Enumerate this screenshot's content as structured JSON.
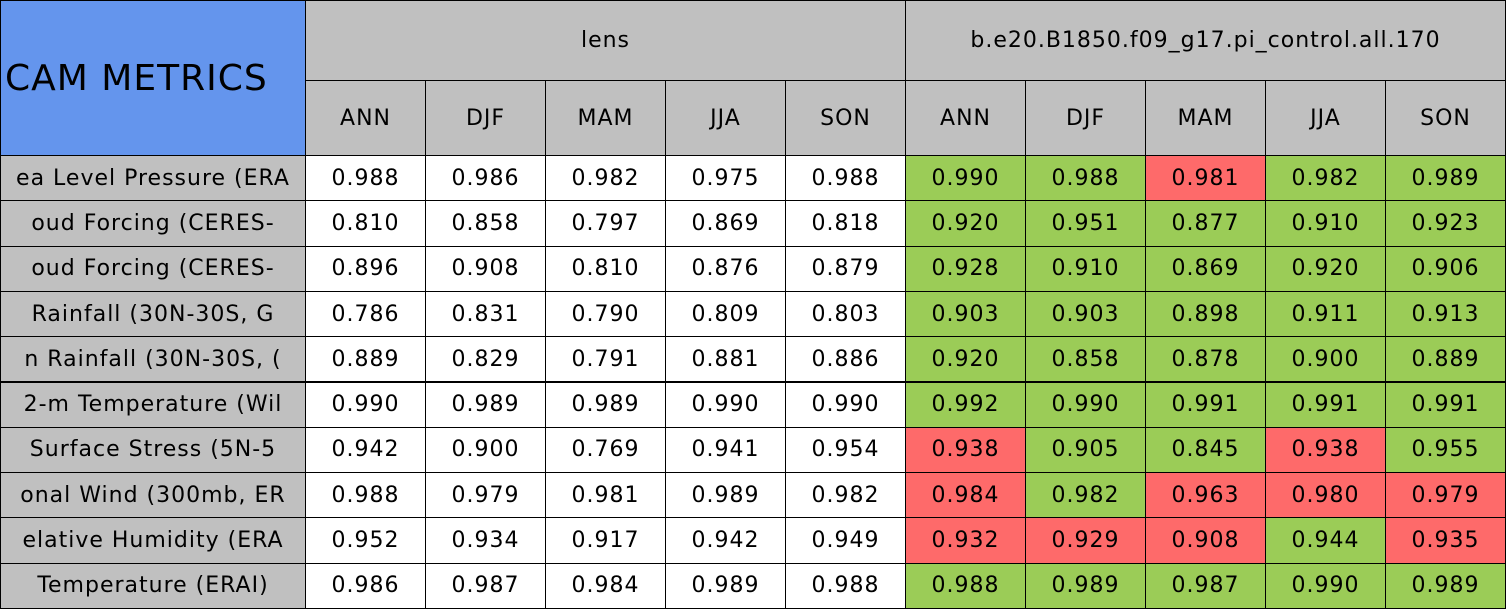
{
  "header": {
    "title": "CAM METRICS",
    "groups": [
      {
        "name": "lens",
        "seasons": [
          "ANN",
          "DJF",
          "MAM",
          "JJA",
          "SON"
        ]
      },
      {
        "name": "b.e20.B1850.f09_g17.pi_control.all.170",
        "seasons": [
          "ANN",
          "DJF",
          "MAM",
          "JJA",
          "SON"
        ]
      }
    ]
  },
  "colors": {
    "title": "#6495ed",
    "header": "#c0c0c0",
    "label": "#c0c0c0"
  },
  "rows": [
    {
      "label": "ea Level Pressure (ERA",
      "values": [
        "0.988",
        "0.986",
        "0.982",
        "0.975",
        "0.988",
        "0.990",
        "0.988",
        "0.981",
        "0.982",
        "0.989"
      ],
      "colors": [
        "#ffffff",
        "#ffffff",
        "#ffffff",
        "#ffffff",
        "#ffffff",
        "#9bcc57",
        "#9bcc57",
        "#fe6a6a",
        "#9bcc57",
        "#9bcc57"
      ]
    },
    {
      "label": "oud Forcing (CERES-",
      "values": [
        "0.810",
        "0.858",
        "0.797",
        "0.869",
        "0.818",
        "0.920",
        "0.951",
        "0.877",
        "0.910",
        "0.923"
      ],
      "colors": [
        "#ffffff",
        "#ffffff",
        "#ffffff",
        "#ffffff",
        "#ffffff",
        "#9bcc57",
        "#9bcc57",
        "#9bcc57",
        "#9bcc57",
        "#9bcc57"
      ]
    },
    {
      "label": "oud Forcing (CERES-",
      "values": [
        "0.896",
        "0.908",
        "0.810",
        "0.876",
        "0.879",
        "0.928",
        "0.910",
        "0.869",
        "0.920",
        "0.906"
      ],
      "colors": [
        "#ffffff",
        "#ffffff",
        "#ffffff",
        "#ffffff",
        "#ffffff",
        "#9bcc57",
        "#9bcc57",
        "#9bcc57",
        "#9bcc57",
        "#9bcc57"
      ]
    },
    {
      "label": "Rainfall (30N-30S, G",
      "values": [
        "0.786",
        "0.831",
        "0.790",
        "0.809",
        "0.803",
        "0.903",
        "0.903",
        "0.898",
        "0.911",
        "0.913"
      ],
      "colors": [
        "#ffffff",
        "#ffffff",
        "#ffffff",
        "#ffffff",
        "#ffffff",
        "#9bcc57",
        "#9bcc57",
        "#9bcc57",
        "#9bcc57",
        "#9bcc57"
      ]
    },
    {
      "label": "n Rainfall (30N-30S, (",
      "values": [
        "0.889",
        "0.829",
        "0.791",
        "0.881",
        "0.886",
        "0.920",
        "0.858",
        "0.878",
        "0.900",
        "0.889"
      ],
      "colors": [
        "#ffffff",
        "#ffffff",
        "#ffffff",
        "#ffffff",
        "#ffffff",
        "#9bcc57",
        "#9bcc57",
        "#9bcc57",
        "#9bcc57",
        "#9bcc57"
      ]
    },
    {
      "label": "2-m Temperature (Wil",
      "values": [
        "0.990",
        "0.989",
        "0.989",
        "0.990",
        "0.990",
        "0.992",
        "0.990",
        "0.991",
        "0.991",
        "0.991"
      ],
      "colors": [
        "#ffffff",
        "#ffffff",
        "#ffffff",
        "#ffffff",
        "#ffffff",
        "#9bcc57",
        "#9bcc57",
        "#9bcc57",
        "#9bcc57",
        "#9bcc57"
      ]
    },
    {
      "label": "Surface Stress (5N-5",
      "values": [
        "0.942",
        "0.900",
        "0.769",
        "0.941",
        "0.954",
        "0.938",
        "0.905",
        "0.845",
        "0.938",
        "0.955"
      ],
      "colors": [
        "#ffffff",
        "#ffffff",
        "#ffffff",
        "#ffffff",
        "#ffffff",
        "#fe6a6a",
        "#9bcc57",
        "#9bcc57",
        "#fe6a6a",
        "#9bcc57"
      ]
    },
    {
      "label": "onal Wind (300mb, ER",
      "values": [
        "0.988",
        "0.979",
        "0.981",
        "0.989",
        "0.982",
        "0.984",
        "0.982",
        "0.963",
        "0.980",
        "0.979"
      ],
      "colors": [
        "#ffffff",
        "#ffffff",
        "#ffffff",
        "#ffffff",
        "#ffffff",
        "#fe6a6a",
        "#9bcc57",
        "#fe6a6a",
        "#fe6a6a",
        "#fe6a6a"
      ]
    },
    {
      "label": "elative Humidity (ERA",
      "values": [
        "0.952",
        "0.934",
        "0.917",
        "0.942",
        "0.949",
        "0.932",
        "0.929",
        "0.908",
        "0.944",
        "0.935"
      ],
      "colors": [
        "#ffffff",
        "#ffffff",
        "#ffffff",
        "#ffffff",
        "#ffffff",
        "#fe6a6a",
        "#fe6a6a",
        "#fe6a6a",
        "#9bcc57",
        "#fe6a6a"
      ]
    },
    {
      "label": "Temperature (ERAI)",
      "values": [
        "0.986",
        "0.987",
        "0.984",
        "0.989",
        "0.988",
        "0.988",
        "0.989",
        "0.987",
        "0.990",
        "0.989"
      ],
      "colors": [
        "#ffffff",
        "#ffffff",
        "#ffffff",
        "#ffffff",
        "#ffffff",
        "#9bcc57",
        "#9bcc57",
        "#9bcc57",
        "#9bcc57",
        "#9bcc57"
      ]
    }
  ]
}
